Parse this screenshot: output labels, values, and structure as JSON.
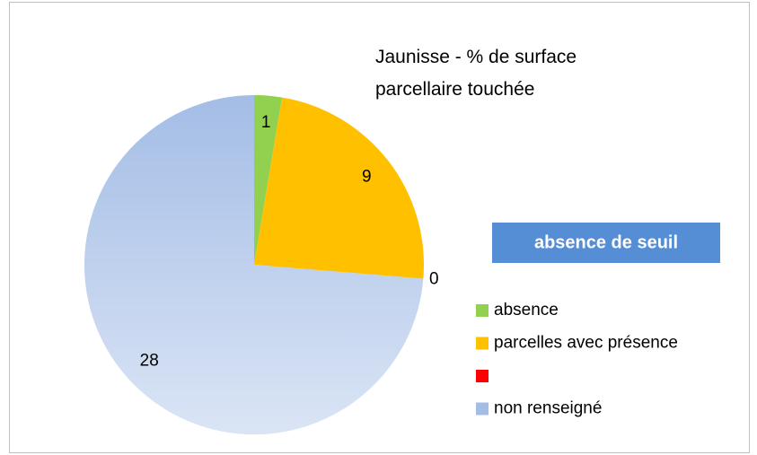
{
  "chart_data": {
    "type": "pie",
    "title": "Jaunisse - % de surface parcellaire touchée",
    "annotation": "absence de seuil",
    "annotation_color": "#558ed5",
    "categories": [
      "absence",
      "parcelles avec présence",
      null,
      "non renseigné"
    ],
    "values": [
      1,
      9,
      0,
      28
    ],
    "colors": [
      "#92d050",
      "#ffc000",
      "#ff0000",
      "#a4bde6"
    ]
  }
}
